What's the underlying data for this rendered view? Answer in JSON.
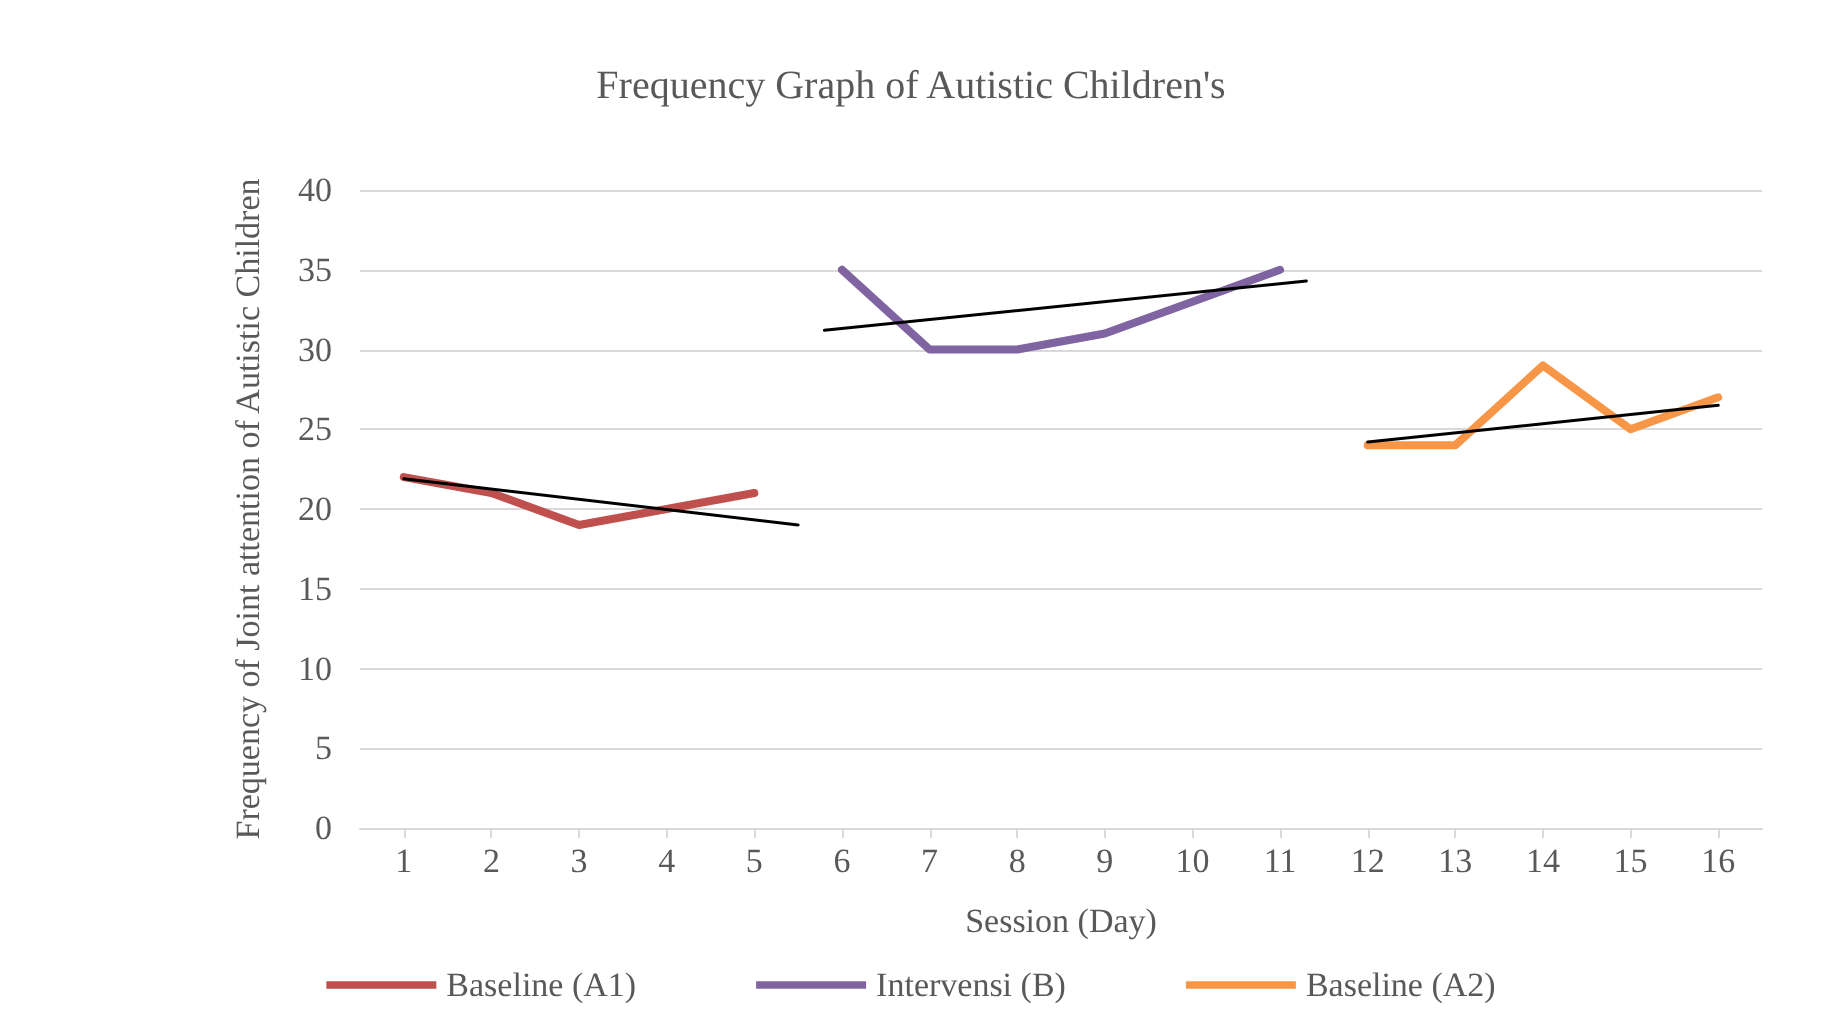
{
  "chart_data": {
    "type": "line",
    "title": "Frequency Graph of Autistic Children's",
    "xlabel": "Session (Day)",
    "ylabel": "Frequency of Joint attention of Autistic Children",
    "x": [
      1,
      2,
      3,
      4,
      5,
      6,
      7,
      8,
      9,
      10,
      11,
      12,
      13,
      14,
      15,
      16
    ],
    "xlim": [
      0.5,
      16.5
    ],
    "xticks": [
      1,
      2,
      3,
      4,
      5,
      6,
      7,
      8,
      9,
      10,
      11,
      12,
      13,
      14,
      15,
      16
    ],
    "ylim": [
      0,
      40
    ],
    "yticks": [
      0,
      5,
      10,
      15,
      20,
      25,
      30,
      35,
      40
    ],
    "grid": "y",
    "legend": "bottom",
    "marker": "none",
    "line_style": "solid",
    "series": [
      {
        "name": "Baseline (A1)",
        "color": "#c0504d",
        "values": [
          22,
          21,
          19,
          20,
          21,
          null,
          null,
          null,
          null,
          null,
          null,
          null,
          null,
          null,
          null,
          null
        ]
      },
      {
        "name": "Intervensi (B)",
        "color": "#8064a2",
        "values": [
          null,
          null,
          null,
          null,
          null,
          35,
          30,
          30,
          31,
          33,
          35,
          null,
          null,
          null,
          null,
          null
        ]
      },
      {
        "name": "Baseline (A2)",
        "color": "#f79646",
        "values": [
          null,
          null,
          null,
          null,
          null,
          null,
          null,
          null,
          null,
          null,
          null,
          24,
          24,
          29,
          25,
          27
        ]
      },
      {
        "color": "#000000",
        "x": [
          1,
          5.5
        ],
        "values": [
          21.9,
          19
        ]
      },
      {
        "color": "#000000",
        "x": [
          5.8,
          11.3
        ],
        "values": [
          31.2,
          34.3
        ]
      },
      {
        "color": "#000000",
        "x": [
          12,
          16
        ],
        "values": [
          24.2,
          26.5
        ]
      }
    ]
  }
}
